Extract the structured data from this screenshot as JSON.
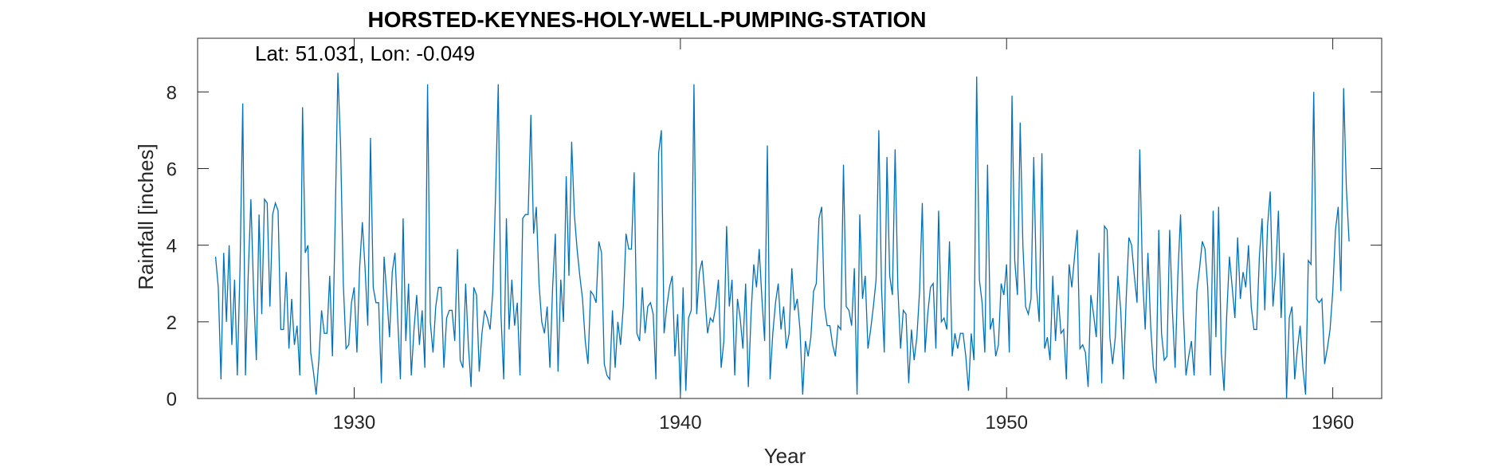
{
  "chart_data": {
    "type": "line",
    "title": "HORSTED-KEYNES-HOLY-WELL-PUMPING-STATION",
    "annotation": "Lat: 51.031, Lon: -0.049",
    "xlabel": "Year",
    "ylabel": "Rainfall [inches]",
    "xlim": [
      1925.2,
      1961.5
    ],
    "ylim": [
      0,
      9.4
    ],
    "xticks": [
      1930,
      1940,
      1950,
      1960
    ],
    "yticks": [
      0,
      2,
      4,
      6,
      8
    ],
    "grid": false,
    "line_color": "#0072BD",
    "series": [
      {
        "start_year": 1925.75,
        "step_years": 0.08333333,
        "values": [
          3.7,
          2.9,
          0.5,
          3.8,
          2.0,
          4.0,
          1.4,
          3.1,
          0.6,
          3.4,
          7.7,
          0.6,
          3.2,
          5.2,
          2.8,
          1.0,
          4.8,
          2.2,
          5.2,
          5.1,
          2.4,
          4.8,
          5.1,
          4.9,
          1.8,
          1.8,
          3.3,
          1.3,
          2.6,
          1.4,
          1.9,
          0.6,
          7.6,
          3.8,
          4.0,
          1.2,
          0.7,
          0.1,
          1.0,
          2.3,
          1.7,
          1.7,
          3.2,
          1.1,
          4.6,
          8.5,
          6.6,
          3.0,
          1.3,
          1.4,
          2.5,
          2.9,
          1.2,
          3.4,
          4.6,
          3.4,
          1.9,
          6.8,
          2.9,
          2.5,
          2.5,
          0.4,
          3.7,
          2.7,
          1.6,
          3.3,
          3.8,
          2.1,
          0.5,
          4.7,
          1.5,
          3.0,
          0.6,
          1.8,
          2.7,
          1.4,
          2.3,
          0.8,
          8.2,
          2.0,
          1.2,
          2.4,
          2.9,
          2.9,
          0.8,
          2.1,
          2.3,
          2.3,
          1.5,
          3.9,
          1.0,
          0.8,
          3.0,
          1.4,
          0.3,
          2.9,
          2.7,
          0.7,
          1.7,
          2.3,
          2.1,
          1.8,
          2.8,
          5.3,
          8.2,
          2.2,
          0.5,
          4.7,
          1.8,
          3.1,
          1.9,
          2.5,
          0.6,
          4.7,
          4.8,
          4.8,
          7.4,
          4.3,
          5.0,
          3.0,
          2.0,
          1.7,
          2.4,
          0.8,
          2.9,
          4.3,
          0.7,
          3.1,
          2.0,
          5.8,
          3.2,
          6.7,
          4.8,
          3.9,
          3.2,
          2.6,
          1.5,
          0.9,
          2.8,
          2.7,
          2.5,
          4.1,
          3.8,
          0.9,
          0.6,
          0.5,
          2.3,
          0.8,
          2.0,
          1.4,
          2.4,
          4.3,
          3.9,
          3.9,
          5.9,
          1.7,
          1.5,
          2.9,
          1.7,
          2.4,
          2.5,
          2.2,
          0.5,
          6.4,
          7.0,
          1.7,
          2.4,
          2.9,
          3.2,
          1.1,
          2.2,
          0.1,
          2.9,
          0.2,
          2.1,
          2.3,
          8.2,
          2.2,
          3.3,
          3.6,
          2.7,
          1.7,
          2.1,
          2.0,
          2.4,
          3.1,
          0.8,
          1.5,
          4.5,
          2.4,
          3.1,
          0.6,
          2.6,
          2.1,
          1.3,
          3.0,
          0.3,
          2.2,
          3.5,
          2.9,
          3.9,
          2.6,
          1.5,
          6.6,
          0.5,
          1.7,
          2.5,
          3.0,
          1.8,
          2.4,
          1.3,
          1.7,
          3.4,
          2.3,
          2.6,
          1.8,
          0.1,
          1.5,
          1.1,
          1.6,
          2.8,
          3.0,
          4.7,
          5.0,
          2.4,
          1.9,
          1.9,
          1.4,
          1.1,
          1.9,
          1.8,
          6.1,
          2.4,
          2.3,
          1.9,
          3.4,
          0.1,
          4.8,
          2.6,
          3.2,
          1.3,
          1.8,
          2.4,
          3.1,
          7.0,
          2.9,
          1.2,
          6.3,
          3.2,
          2.7,
          6.5,
          2.9,
          1.3,
          2.3,
          2.2,
          0.4,
          1.8,
          1.0,
          1.6,
          2.8,
          5.1,
          1.2,
          2.2,
          2.9,
          3.0,
          1.3,
          4.9,
          2.0,
          2.1,
          1.8,
          4.1,
          1.1,
          1.7,
          1.3,
          1.7,
          1.7,
          1.1,
          0.2,
          1.7,
          1.0,
          8.4,
          3.1,
          2.5,
          1.2,
          6.1,
          1.8,
          2.1,
          1.1,
          1.4,
          3.0,
          2.7,
          3.5,
          1.2,
          7.9,
          3.6,
          2.7,
          7.2,
          4.0,
          2.4,
          2.2,
          2.6,
          6.3,
          2.9,
          2.0,
          6.4,
          1.3,
          1.6,
          1.0,
          3.2,
          1.5,
          2.7,
          1.7,
          1.8,
          0.5,
          3.5,
          2.9,
          3.7,
          4.4,
          1.3,
          1.4,
          1.2,
          0.3,
          2.7,
          2.2,
          1.6,
          3.8,
          0.4,
          4.5,
          4.4,
          1.6,
          0.9,
          1.6,
          3.2,
          2.3,
          0.5,
          2.6,
          4.2,
          4.0,
          3.2,
          2.5,
          6.5,
          3.2,
          1.8,
          3.8,
          1.9,
          0.8,
          0.4,
          4.4,
          1.7,
          1.0,
          1.1,
          4.4,
          2.3,
          0.8,
          3.2,
          4.8,
          2.3,
          0.6,
          1.1,
          1.5,
          0.6,
          2.8,
          3.4,
          4.1,
          3.9,
          2.9,
          0.6,
          4.9,
          1.6,
          5.0,
          1.2,
          0.2,
          2.2,
          3.7,
          2.9,
          2.1,
          4.2,
          2.6,
          3.3,
          2.9,
          4.0,
          2.4,
          1.8,
          1.8,
          3.7,
          4.7,
          2.3,
          4.5,
          5.4,
          2.4,
          3.3,
          4.9,
          2.1,
          3.8,
          0.0,
          2.1,
          2.4,
          0.5,
          1.3,
          1.9,
          0.8,
          0.1,
          3.6,
          3.5,
          8.0,
          2.6,
          2.5,
          2.6,
          0.9,
          1.3,
          1.8,
          2.8,
          4.4,
          5.0,
          2.8,
          8.1,
          5.5,
          4.1
        ]
      }
    ]
  }
}
